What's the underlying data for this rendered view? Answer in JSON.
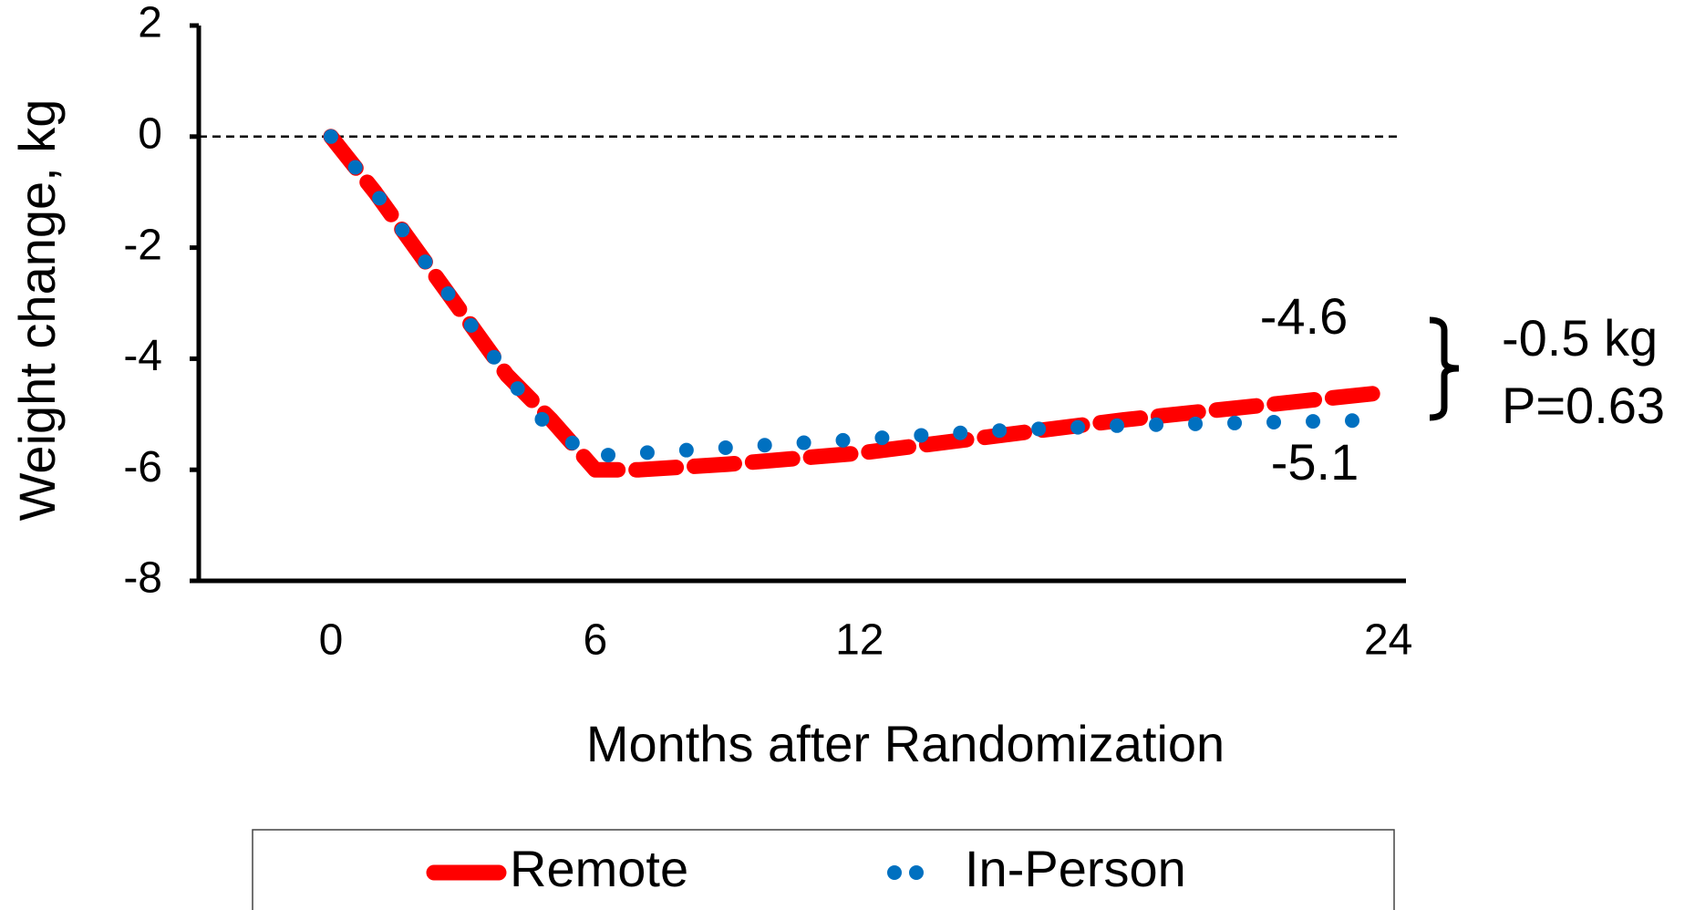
{
  "chart_data": {
    "type": "line",
    "xlabel": "Months after Randomization",
    "ylabel": "Weight change, kg",
    "x": [
      0,
      1,
      2,
      3,
      4,
      5,
      6,
      7,
      9,
      12,
      15,
      18,
      21,
      24
    ],
    "series": [
      {
        "name": "Remote",
        "color": "#ff0000",
        "values": [
          0,
          -1.0,
          -2.1,
          -3.2,
          -4.3,
          -5.1,
          -6.0,
          -6.0,
          -5.9,
          -5.7,
          -5.4,
          -5.1,
          -4.85,
          -4.6
        ]
      },
      {
        "name": "In-Person",
        "color": "#0070c0",
        "values": [
          0,
          -1.0,
          -2.1,
          -3.2,
          -4.3,
          -5.3,
          -5.75,
          -5.7,
          -5.6,
          -5.45,
          -5.3,
          -5.2,
          -5.15,
          -5.1
        ]
      }
    ],
    "xlim": [
      -3,
      24.4
    ],
    "xticks": [
      0,
      6,
      12,
      24
    ],
    "ylim": [
      -8,
      2
    ],
    "yticks": [
      2,
      0,
      -2,
      -4,
      -6,
      -8
    ],
    "annotations": [
      "-4.6",
      "-5.1",
      "-0.5 kg",
      "P=0.63"
    ],
    "legend": "bottom"
  }
}
